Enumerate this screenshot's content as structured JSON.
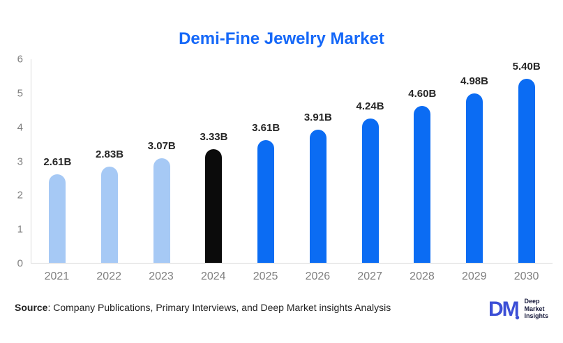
{
  "title": "Demi-Fine Jewelry Market",
  "source": {
    "label": "Source",
    "text": ": Company Publications, Primary Interviews, and Deep Market insights Analysis"
  },
  "logo": {
    "mark": "DM",
    "lines": [
      "Deep",
      "Market",
      "Insights"
    ]
  },
  "colors": {
    "title": "#1568F8",
    "bar_light": "#A6C9F5",
    "bar_dark": "#0B6CF3",
    "bar_black": "#0B0B0B",
    "axis_text": "#7F7F7F",
    "value_text": "#262626",
    "axis_line": "#D9D9D9",
    "logo_blue": "#3C4FD6",
    "logo_text": "#16193B"
  },
  "chart_data": {
    "type": "bar",
    "title": "Demi-Fine Jewelry Market",
    "categories": [
      "2021",
      "2022",
      "2023",
      "2024",
      "2025",
      "2026",
      "2027",
      "2028",
      "2029",
      "2030"
    ],
    "values": [
      2.61,
      2.83,
      3.07,
      3.33,
      3.61,
      3.91,
      4.24,
      4.6,
      4.98,
      5.4
    ],
    "value_labels": [
      "2.61B",
      "2.83B",
      "3.07B",
      "3.33B",
      "3.61B",
      "3.91B",
      "4.24B",
      "4.60B",
      "4.98B",
      "5.40B"
    ],
    "bar_styles": [
      "light",
      "light",
      "light",
      "black",
      "dark",
      "dark",
      "dark",
      "dark",
      "dark",
      "dark"
    ],
    "xlabel": "",
    "ylabel": "",
    "ylim": [
      0,
      6
    ],
    "yticks": [
      0,
      1,
      2,
      3,
      4,
      5,
      6
    ],
    "grid": false,
    "legend": false
  }
}
